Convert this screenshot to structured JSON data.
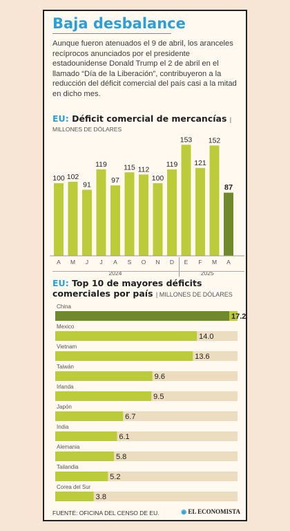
{
  "title": "Baja desbalance",
  "intro": "Aunque fueron atenuados el 9 de abril, los aranceles recíprocos anunciados por el presidente estadounidense Donald Trump el 2 de abril en el llamado “Día de la Liberación”, contribuyeron a la reducción del déficit comercial del país casi a la mitad en dicho mes.",
  "colors": {
    "accent": "#2c9fd6",
    "bar": "#bccb3a",
    "bar_highlight": "#6f8a2c",
    "bar_track": "#ecdcc0"
  },
  "chart_data": [
    {
      "type": "bar",
      "title_prefix": "EU:",
      "title": "Déficit comercial de mercancías",
      "unit": "MILLONES DE DÓLARES",
      "categories": [
        "A",
        "M",
        "J",
        "J",
        "A",
        "S",
        "O",
        "N",
        "D",
        "E",
        "F",
        "M",
        "A"
      ],
      "values": [
        100,
        102,
        91,
        119,
        97,
        115,
        112,
        100,
        119,
        153,
        121,
        152,
        87
      ],
      "highlight_index": 12,
      "year_groups": [
        {
          "label": "2024",
          "from": 0,
          "to": 8
        },
        {
          "label": "2025",
          "from": 9,
          "to": 12
        }
      ],
      "ylim": [
        0,
        160
      ]
    },
    {
      "type": "bar",
      "orientation": "horizontal",
      "title_prefix": "EU:",
      "title_line1": "Top 10 de mayores déficits",
      "title_line2": "comerciales por país",
      "unit": "MILLONES DE DÓLARES",
      "categories": [
        "China",
        "Mexico",
        "Vietnam",
        "Taiwán",
        "Irlanda",
        "Japón",
        "India",
        "Alemania",
        "Tailandia",
        "Corea del Sur"
      ],
      "values": [
        17.2,
        14.0,
        13.6,
        9.6,
        9.5,
        6.7,
        6.1,
        5.8,
        5.2,
        3.8
      ],
      "value_labels": [
        "17.2",
        "14.0",
        "13.6",
        "9.6",
        "9.5",
        "6.7",
        "6.1",
        "5.8",
        "5.2",
        "3.8"
      ],
      "highlight_index": 0,
      "xlim": [
        0,
        17.2
      ]
    }
  ],
  "footer": "FUENTE: OFICINA DEL CENSO DE EU.",
  "logo": "EL ECONOMISTA"
}
